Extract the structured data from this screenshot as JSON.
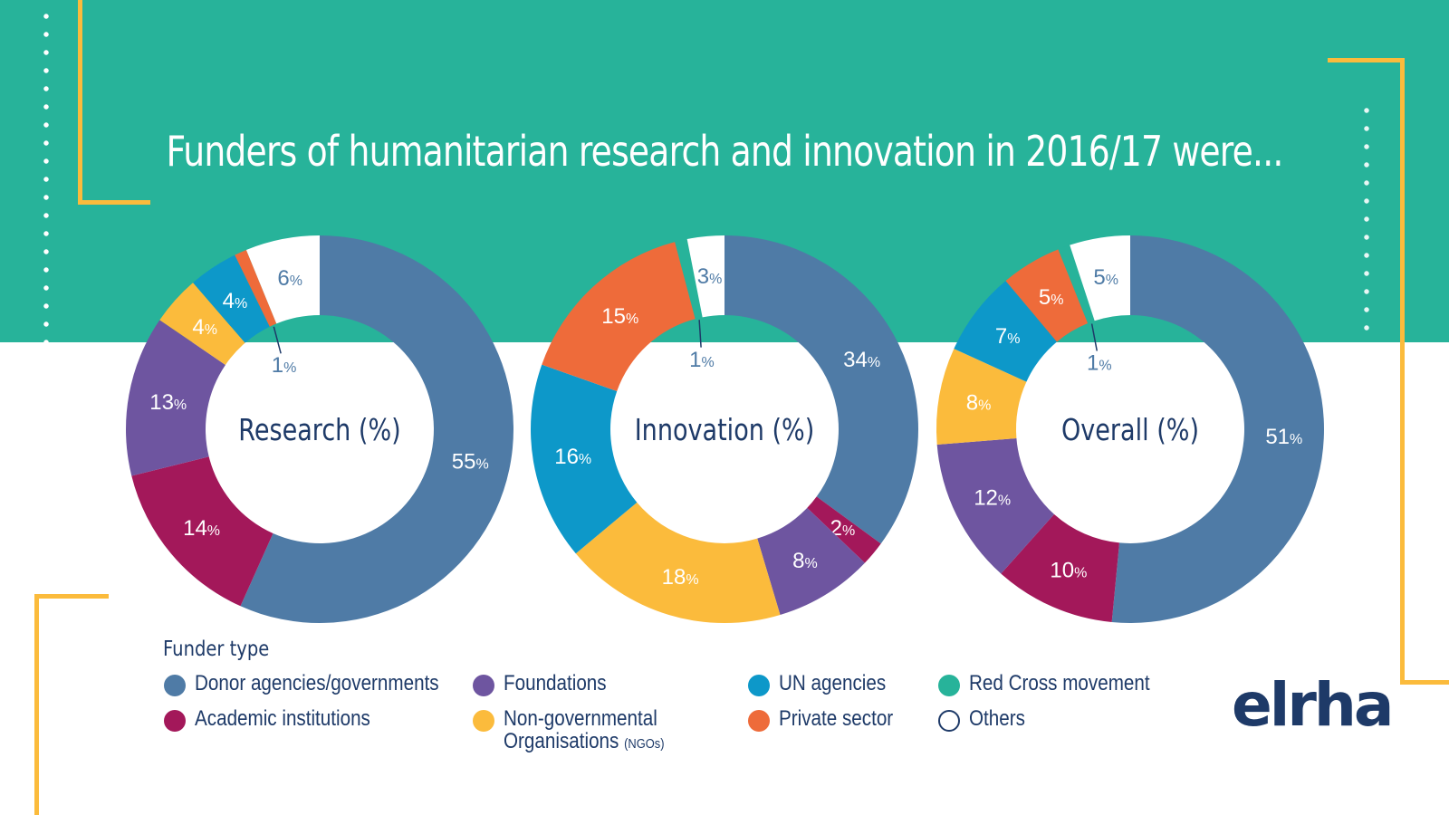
{
  "title": "Funders of humanitarian research and innovation in 2016/17 were...",
  "logo_text": "elrha",
  "legend": {
    "title": "Funder type",
    "items": [
      {
        "label": "Donor agencies/governments",
        "color": "#4f7ba6"
      },
      {
        "label": "Foundations",
        "color": "#6e55a0"
      },
      {
        "label": "UN agencies",
        "color": "#0d98c9"
      },
      {
        "label": "Red Cross movement",
        "color": "#27b39a"
      },
      {
        "label": "Academic institutions",
        "color": "#a3185a"
      },
      {
        "label": "Non-governmental Organisations",
        "label_suffix": "(NGOs)",
        "color": "#fbbb3c"
      },
      {
        "label": "Private sector",
        "color": "#ee6b3a"
      },
      {
        "label": "Others",
        "color": "#ffffff"
      }
    ]
  },
  "chart_data": [
    {
      "type": "pie",
      "center_label": "Research (%)",
      "unit": "%",
      "slices": [
        {
          "category": "Donor agencies/governments",
          "value": 55
        },
        {
          "category": "Academic institutions",
          "value": 14
        },
        {
          "category": "Foundations",
          "value": 13
        },
        {
          "category": "Non-governmental Organisations (NGOs)",
          "value": 4
        },
        {
          "category": "UN agencies",
          "value": 4
        },
        {
          "category": "Private sector",
          "value": 1
        },
        {
          "category": "Others",
          "value": 6
        }
      ]
    },
    {
      "type": "pie",
      "center_label": "Innovation (%)",
      "unit": "%",
      "slices": [
        {
          "category": "Donor agencies/governments",
          "value": 34
        },
        {
          "category": "Academic institutions",
          "value": 2
        },
        {
          "category": "Foundations",
          "value": 8
        },
        {
          "category": "Non-governmental Organisations (NGOs)",
          "value": 18
        },
        {
          "category": "UN agencies",
          "value": 16
        },
        {
          "category": "Private sector",
          "value": 15
        },
        {
          "category": "Red Cross movement",
          "value": 1
        },
        {
          "category": "Others",
          "value": 3
        }
      ]
    },
    {
      "type": "pie",
      "center_label": "Overall (%)",
      "unit": "%",
      "slices": [
        {
          "category": "Donor agencies/governments",
          "value": 51
        },
        {
          "category": "Academic institutions",
          "value": 10
        },
        {
          "category": "Foundations",
          "value": 12
        },
        {
          "category": "Non-governmental Organisations (NGOs)",
          "value": 8
        },
        {
          "category": "UN agencies",
          "value": 7
        },
        {
          "category": "Private sector",
          "value": 5
        },
        {
          "category": "Red Cross movement",
          "value": 1
        },
        {
          "category": "Others",
          "value": 5
        }
      ]
    }
  ]
}
